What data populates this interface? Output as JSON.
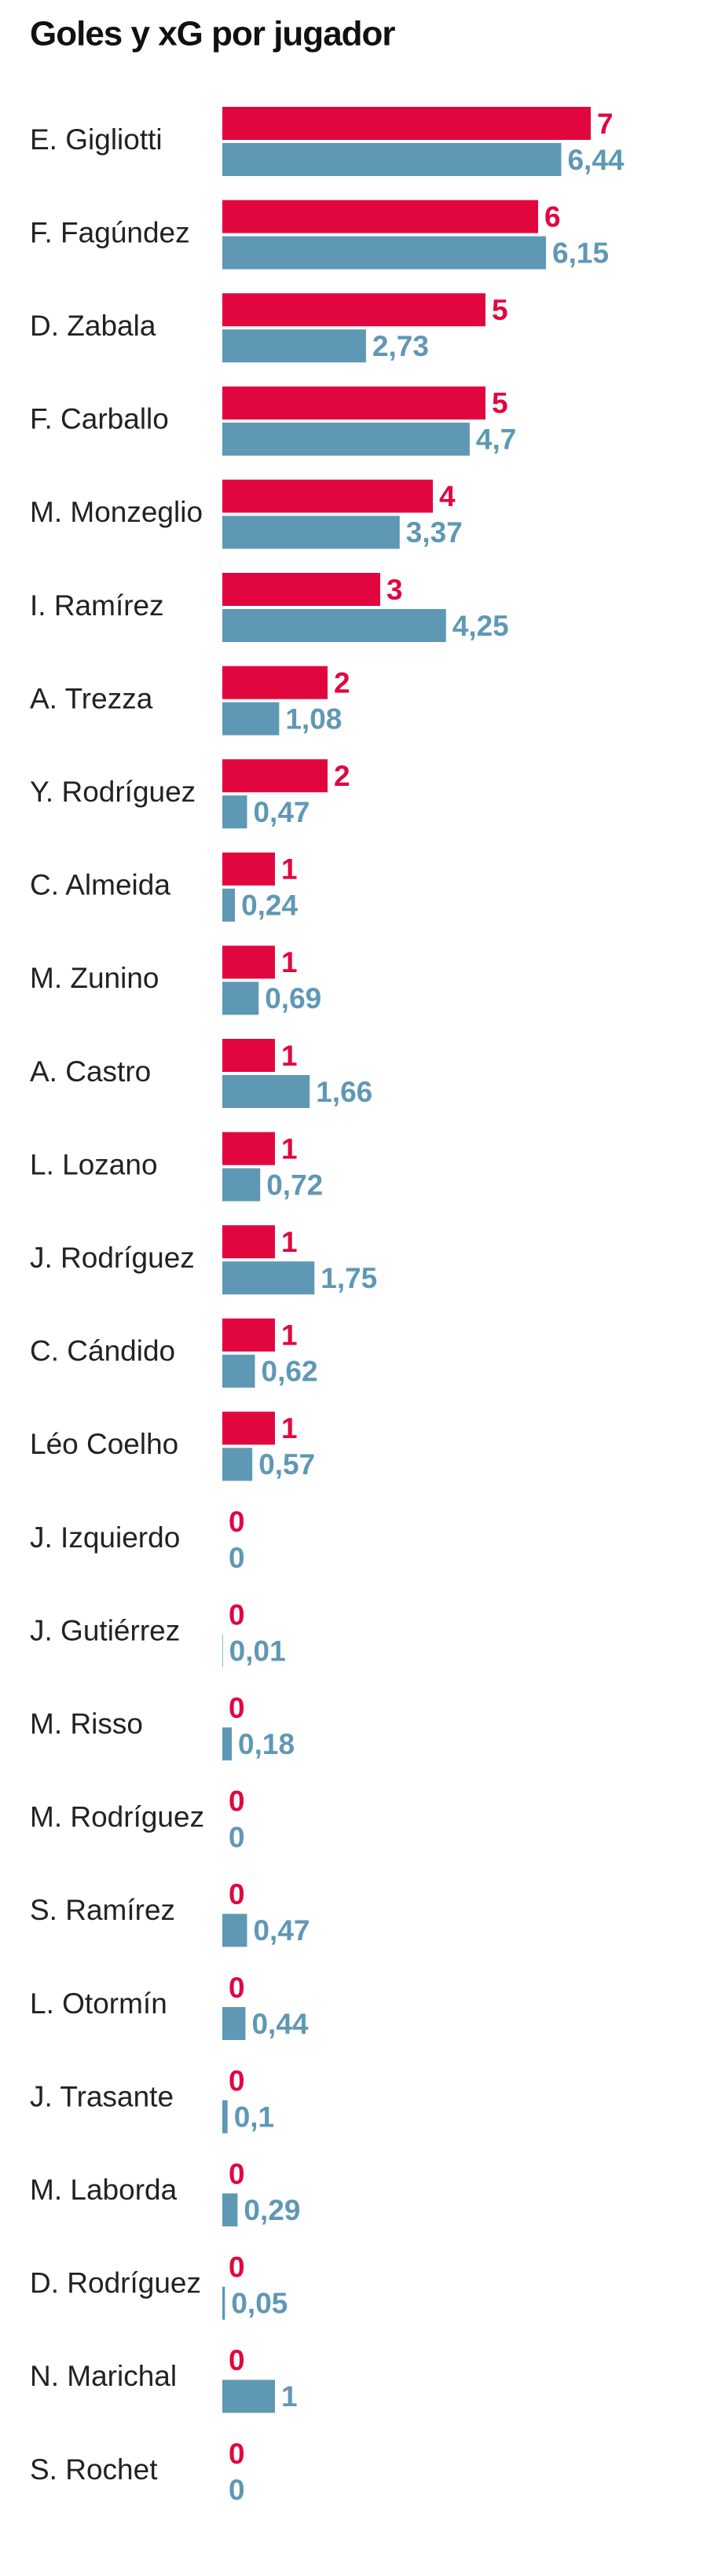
{
  "chart_data": {
    "type": "hbar",
    "title": "Goles y xG por jugador",
    "categories": [
      "E. Gigliotti",
      "F. Fagúndez",
      "D. Zabala",
      "F. Carballo",
      "M. Monzeglio",
      "I. Ramírez",
      "A. Trezza",
      "Y. Rodríguez",
      "C. Almeida",
      "M. Zunino",
      "A. Castro",
      "L. Lozano",
      "J. Rodríguez",
      "C. Cándido",
      "Léo Coelho",
      "J. Izquierdo",
      "J. Gutiérrez",
      "M. Risso",
      "M. Rodríguez",
      "S. Ramírez",
      "L. Otormín",
      "J. Trasante",
      "M. Laborda",
      "D. Rodríguez",
      "N. Marichal",
      "S. Rochet"
    ],
    "series": [
      {
        "color": "#e2063f",
        "values": [
          7,
          6,
          5,
          5,
          4,
          3,
          2,
          2,
          1,
          1,
          1,
          1,
          1,
          1,
          1,
          0,
          0,
          0,
          0,
          0,
          0,
          0,
          0,
          0,
          0,
          0
        ]
      },
      {
        "color": "#5f98b5",
        "values": [
          6.44,
          6.15,
          2.73,
          4.7,
          3.37,
          4.25,
          1.08,
          0.47,
          0.24,
          0.69,
          1.66,
          0.72,
          1.75,
          0.62,
          0.57,
          0,
          0.01,
          0.18,
          0,
          0.47,
          0.44,
          0.1,
          0.29,
          0.05,
          1,
          0
        ],
        "value_labels": [
          "6,44",
          "6,15",
          "2,73",
          "4,7",
          "3,37",
          "4,25",
          "1,08",
          "0,47",
          "0,24",
          "0,69",
          "1,66",
          "0,72",
          "1,75",
          "0,62",
          "0,57",
          "0",
          "0,01",
          "0,18",
          "0",
          "0,47",
          "0,44",
          "0,1",
          "0,29",
          "0,05",
          "1",
          "0"
        ]
      }
    ]
  }
}
